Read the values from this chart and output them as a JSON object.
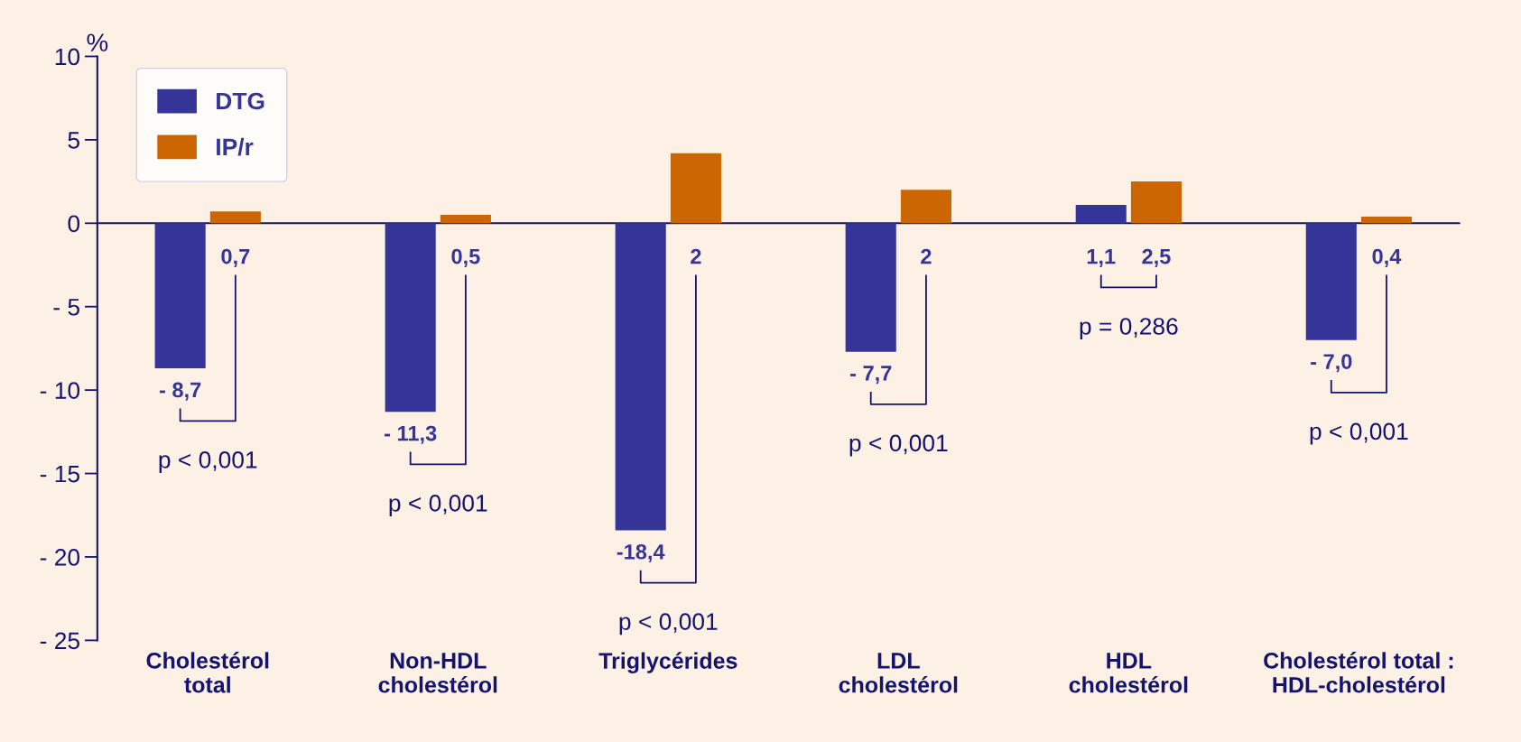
{
  "chart_data": {
    "type": "bar",
    "ylabel": "%",
    "categories": [
      "Cholestérol\ntotal",
      "Non-HDL\ncholestérol",
      "Triglycérides",
      "LDL\ncholestérol",
      "HDL\ncholestérol",
      "Cholestérol total :\nHDL-cholestérol"
    ],
    "series": [
      {
        "name": "DTG",
        "color": "#353599",
        "values": [
          -8.7,
          -11.3,
          -18.4,
          -7.7,
          1.1,
          -7.0
        ],
        "value_labels": [
          "- 8,7",
          "- 11,3",
          "-18,4",
          "- 7,7",
          "1,1",
          "- 7,0"
        ]
      },
      {
        "name": "IP/r",
        "color": "#cc6600",
        "values": [
          0.7,
          0.5,
          4.2,
          2.0,
          2.5,
          0.4
        ],
        "value_labels": [
          "0,7",
          "0,5",
          null,
          "2",
          "2,5",
          "0,4"
        ]
      }
    ],
    "ylim": [
      -25,
      10
    ],
    "yticks": [
      {
        "value": -25,
        "label": "- 25"
      },
      {
        "value": -20,
        "label": "- 20"
      },
      {
        "value": -15,
        "label": "- 15"
      },
      {
        "value": -10,
        "label": "- 10"
      },
      {
        "value": -5,
        "label": "- 5"
      },
      0,
      5,
      10
    ],
    "annotations": [
      "p < 0,001",
      "p < 0,001",
      "p < 0,001",
      "p < 0,001",
      "p = 0,286",
      "p < 0,001",
      {
        "text": "2",
        "x": "Triglycérides"
      }
    ],
    "ref_lines": [
      {
        "axis": "y",
        "value": 0,
        "color": "#14146e"
      }
    ],
    "legend": "top left",
    "grid": false
  }
}
